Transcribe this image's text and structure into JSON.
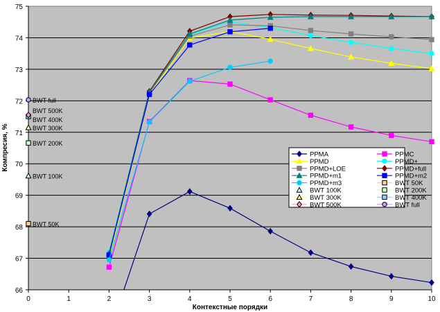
{
  "chart_data": {
    "type": "line",
    "title": "",
    "xlabel": "Контекстные порядки",
    "ylabel": "Компресия, %",
    "xlim": [
      0,
      10
    ],
    "ylim": [
      66,
      75
    ],
    "x_ticks": [
      "0",
      "1",
      "2",
      "3",
      "4",
      "5",
      "6",
      "7",
      "8",
      "9",
      "10"
    ],
    "y_ticks": [
      "66",
      "67",
      "68",
      "69",
      "70",
      "71",
      "72",
      "73",
      "74",
      "75"
    ],
    "grid": true,
    "legend_position": "center-right",
    "series": [
      {
        "name": "PPMA",
        "color": "#000080",
        "marker": "diamond",
        "x": [
          2,
          3,
          4,
          5,
          6,
          7,
          8,
          9,
          10
        ],
        "values": [
          64.6,
          68.41,
          69.12,
          68.59,
          67.86,
          67.18,
          66.74,
          66.43,
          66.23
        ]
      },
      {
        "name": "PPMC",
        "color": "#FF00FF",
        "marker": "square",
        "x": [
          2,
          3,
          4,
          5,
          6,
          7,
          8,
          9,
          10
        ],
        "values": [
          66.72,
          71.34,
          72.64,
          72.53,
          72.03,
          71.54,
          71.17,
          70.9,
          70.7
        ]
      },
      {
        "name": "PPMD",
        "color": "#FFFF00",
        "marker": "triangle",
        "x": [
          2,
          3,
          4,
          5,
          6,
          7,
          8,
          9,
          10
        ],
        "values": [
          67.0,
          72.2,
          73.99,
          74.2,
          73.95,
          73.66,
          73.39,
          73.19,
          73.02
        ]
      },
      {
        "name": "PPMD+",
        "color": "#00FFFF",
        "marker": "circle",
        "x": [
          2,
          3,
          4,
          5,
          6,
          7,
          8,
          9,
          10
        ],
        "values": [
          67.2,
          72.3,
          74.1,
          74.5,
          74.32,
          74.07,
          73.85,
          73.66,
          73.5
        ]
      },
      {
        "name": "PPMD+LOE",
        "color": "#808080",
        "marker": "square",
        "x": [
          2,
          3,
          4,
          5,
          6,
          7,
          8,
          9,
          10
        ],
        "values": [
          67.1,
          72.25,
          74.05,
          74.41,
          74.38,
          74.23,
          74.12,
          74.03,
          73.94
        ]
      },
      {
        "name": "PPMD+full",
        "color": "#800000",
        "marker": "diamond",
        "x": [
          2,
          3,
          4,
          5,
          6,
          7,
          8,
          9,
          10
        ],
        "values": [
          67.15,
          72.3,
          74.21,
          74.67,
          74.74,
          74.72,
          74.71,
          74.69,
          74.67
        ]
      },
      {
        "name": "PPMD+m1",
        "color": "#008080",
        "marker": "triangle",
        "x": [
          2,
          3,
          4,
          5,
          6,
          7,
          8,
          9,
          10
        ],
        "values": [
          67.15,
          72.28,
          74.12,
          74.56,
          74.65,
          74.67,
          74.67,
          74.67,
          74.67
        ]
      },
      {
        "name": "PPMD+m2",
        "color": "#0000FF",
        "marker": "square",
        "x": [
          2,
          3,
          4,
          5,
          6
        ],
        "values": [
          67.1,
          72.2,
          73.77,
          74.19,
          74.3
        ]
      },
      {
        "name": "PPMD+m3",
        "color": "#00CCFF",
        "marker": "circle",
        "x": [
          2,
          3,
          4,
          5,
          6
        ],
        "values": [
          66.95,
          71.32,
          72.62,
          73.06,
          73.26
        ]
      },
      {
        "name": "BWT 50K",
        "color": "#FFCC99",
        "marker": "osquare",
        "x": [
          0
        ],
        "values": [
          68.1
        ],
        "label": "BWT 50K"
      },
      {
        "name": "BWT 100K",
        "color": "#CCFFFF",
        "marker": "otriangle",
        "x": [
          0
        ],
        "values": [
          69.62
        ],
        "label": "BWT 100K"
      },
      {
        "name": "BWT 200K",
        "color": "#CCFFCC",
        "marker": "osquare",
        "x": [
          0
        ],
        "values": [
          70.66
        ],
        "label": "BWT 200K"
      },
      {
        "name": "BWT 300K",
        "color": "#FFFF99",
        "marker": "otriangle",
        "x": [
          0
        ],
        "values": [
          71.15
        ],
        "label": "BWT 300K"
      },
      {
        "name": "BWT 400K",
        "color": "#99CCFF",
        "marker": "osquare",
        "x": [
          0
        ],
        "values": [
          71.5
        ],
        "label": "BWT 400K"
      },
      {
        "name": "BWT 500K",
        "color": "#FF99CC",
        "marker": "odiamond",
        "x": [
          0
        ],
        "values": [
          71.55
        ],
        "label": "BWT 500K"
      },
      {
        "name": "BWT full",
        "color": "#CC99FF",
        "marker": "ocircle",
        "x": [
          0
        ],
        "values": [
          72.03
        ],
        "label": "BWT full"
      }
    ]
  }
}
